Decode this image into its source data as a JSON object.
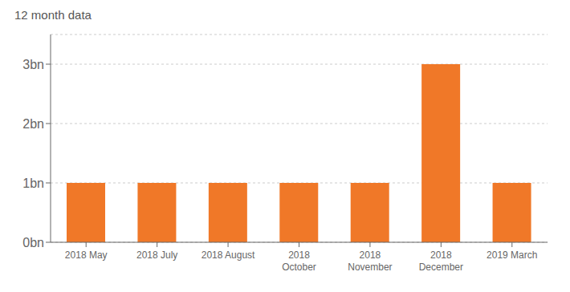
{
  "chart_data": {
    "type": "bar",
    "title": "12 month data",
    "categories": [
      "2018 May",
      "2018 July",
      "2018 August",
      "2018\nOctober",
      "2018\nNovember",
      "2018\nDecember",
      "2019 March"
    ],
    "values": [
      1000000000,
      1000000000,
      1000000000,
      1000000000,
      1000000000,
      3000000000,
      1000000000
    ],
    "color": "#F07828",
    "ylim": [
      0,
      3500000000
    ],
    "yticks": [
      {
        "value": 0,
        "label": "0bn"
      },
      {
        "value": 1000000000,
        "label": "1bn"
      },
      {
        "value": 2000000000,
        "label": "2bn"
      },
      {
        "value": 3000000000,
        "label": "3bn"
      }
    ],
    "grid": true
  }
}
